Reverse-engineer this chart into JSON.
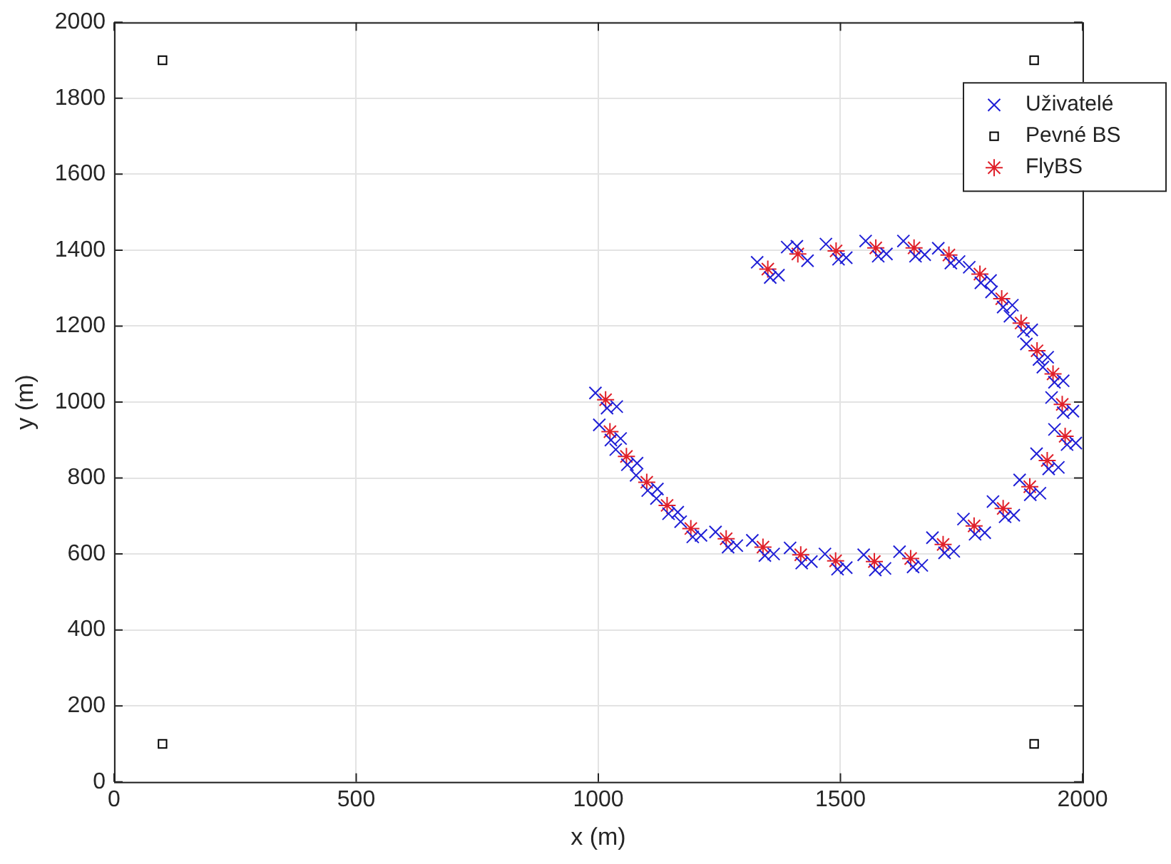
{
  "chart_data": {
    "type": "scatter",
    "xlabel": "x (m)",
    "ylabel": "y (m)",
    "xlim": [
      0,
      2000
    ],
    "ylim": [
      0,
      2000
    ],
    "xticks": [
      0,
      500,
      1000,
      1500,
      2000
    ],
    "yticks": [
      0,
      200,
      400,
      600,
      800,
      1000,
      1200,
      1400,
      1600,
      1800,
      2000
    ],
    "grid": true,
    "legend": "top right",
    "series": [
      {
        "name": "Uživatelé",
        "color": "#1f1fd6",
        "marker": "cross",
        "x": [
          1328,
          1372,
          1355,
          1390,
          1432,
          1410,
          1470,
          1512,
          1496,
          1552,
          1595,
          1578,
          1630,
          1674,
          1655,
          1702,
          1745,
          1728,
          1766,
          1810,
          1790,
          1812,
          1855,
          1836,
          1850,
          1895,
          1878,
          1884,
          1928,
          1910,
          1918,
          1960,
          1942,
          1936,
          1980,
          1960,
          1942,
          1986,
          1968,
          1905,
          1950,
          1930,
          1870,
          1912,
          1892,
          1815,
          1858,
          1840,
          1754,
          1798,
          1778,
          1690,
          1734,
          1715,
          1622,
          1668,
          1650,
          1548,
          1592,
          1572,
          1468,
          1512,
          1494,
          1396,
          1440,
          1420,
          1318,
          1362,
          1344,
          1242,
          1286,
          1268,
          1170,
          1212,
          1195,
          1120,
          1164,
          1145,
          1078,
          1122,
          1102,
          1036,
          1080,
          1060,
          1002,
          1046,
          1026,
          994,
          1038,
          1018
        ],
        "values": [
          1368,
          1334,
          1328,
          1408,
          1372,
          1410,
          1416,
          1380,
          1376,
          1424,
          1390,
          1384,
          1424,
          1388,
          1384,
          1405,
          1370,
          1366,
          1355,
          1320,
          1314,
          1290,
          1255,
          1250,
          1226,
          1190,
          1186,
          1153,
          1118,
          1112,
          1092,
          1056,
          1052,
          1012,
          976,
          972,
          928,
          892,
          888,
          864,
          828,
          824,
          795,
          760,
          756,
          738,
          702,
          698,
          692,
          656,
          652,
          643,
          607,
          603,
          606,
          570,
          566,
          598,
          562,
          558,
          600,
          564,
          560,
          616,
          580,
          576,
          636,
          600,
          596,
          658,
          622,
          618,
          685,
          649,
          645,
          746,
          710,
          706,
          807,
          771,
          767,
          875,
          839,
          835,
          940,
          904,
          900,
          1024,
          988,
          984
        ]
      },
      {
        "name": "Pevné BS",
        "color": "#000000",
        "marker": "square",
        "x": [
          100,
          1900,
          100,
          1900
        ],
        "values": [
          1900,
          1900,
          100,
          100
        ]
      },
      {
        "name": "FlyBS",
        "color": "#e0202a",
        "x": [
          1350,
          1412,
          1491,
          1573,
          1652,
          1724,
          1788,
          1833,
          1873,
          1906,
          1939,
          1958,
          1964,
          1927,
          1891,
          1836,
          1776,
          1712,
          1645,
          1570,
          1490,
          1418,
          1340,
          1264,
          1191,
          1142,
          1100,
          1058,
          1024,
          1015
        ],
        "values": [
          1350,
          1390,
          1398,
          1406,
          1406,
          1387,
          1337,
          1272,
          1208,
          1135,
          1074,
          994,
          910,
          846,
          777,
          720,
          674,
          625,
          588,
          580,
          582,
          598,
          618,
          640,
          667,
          728,
          789,
          857,
          922,
          1006
        ]
      }
    ]
  }
}
